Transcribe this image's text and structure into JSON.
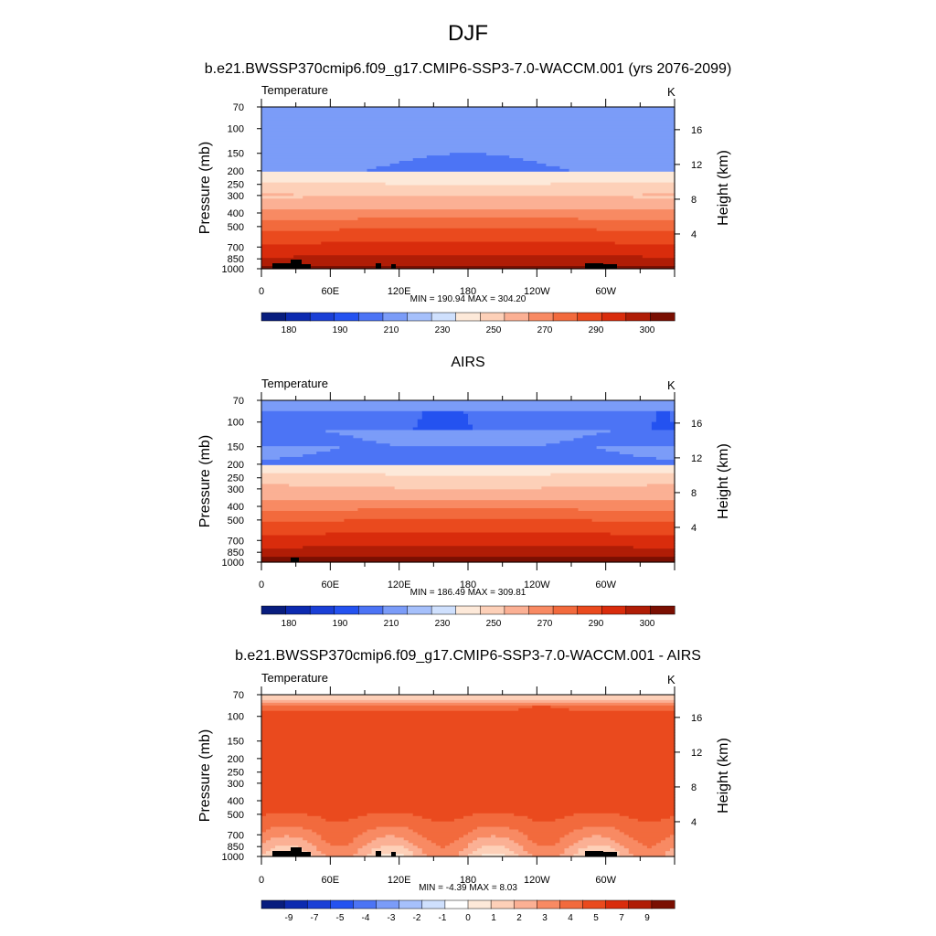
{
  "figure": {
    "title": "DJF"
  },
  "colors": {
    "temperature_fills": [
      "#081d7e",
      "#0c2ab0",
      "#1a3fd6",
      "#2452f0",
      "#4c74f5",
      "#7b9cf8",
      "#a6c0fb",
      "#cfe0fd",
      "#fde9d9",
      "#fdd0b8",
      "#fbb094",
      "#f88a63",
      "#f26a3d",
      "#ea4a1e",
      "#d92c0c",
      "#b01d06",
      "#7a0f02"
    ],
    "difference_fills": [
      "#081d7e",
      "#0c2ab0",
      "#1a3fd6",
      "#2452f0",
      "#4c74f5",
      "#7b9cf8",
      "#a6c0fb",
      "#cfe0fd",
      "#ffffff",
      "#fde9d9",
      "#fdd0b8",
      "#fbb094",
      "#f88a63",
      "#f26a3d",
      "#ea4a1e",
      "#d92c0c",
      "#b01d06",
      "#7a0f02"
    ],
    "terrain": "#000000"
  },
  "chart_data": [
    {
      "type": "contour",
      "panel_title": "b.e21.BWSSP370cmip6.f09_g17.CMIP6-SSP3-7.0-WACCM.001 (yrs 2076-2099)",
      "left_label": "Temperature",
      "units_label": "K",
      "ylabel": "Pressure (mb)",
      "ylabel_right": "Height (km)",
      "pressure_ticks": [
        "70",
        "100",
        "150",
        "200",
        "250",
        "300",
        "400",
        "500",
        "700",
        "850",
        "1000"
      ],
      "height_ticks": [
        "16",
        "12",
        "8",
        "4"
      ],
      "lon_ticks": [
        "0",
        "60E",
        "120E",
        "180",
        "120W",
        "60W"
      ],
      "stats": "MIN = 190.94  MAX = 304.20",
      "colorbar_labels": [
        "180",
        "190",
        "210",
        "230",
        "250",
        "270",
        "290",
        "300"
      ],
      "field": "model_temperature"
    },
    {
      "type": "contour",
      "panel_title": "AIRS",
      "left_label": "Temperature",
      "units_label": "K",
      "ylabel": "Pressure (mb)",
      "ylabel_right": "Height (km)",
      "pressure_ticks": [
        "70",
        "100",
        "150",
        "200",
        "250",
        "300",
        "400",
        "500",
        "700",
        "850",
        "1000"
      ],
      "height_ticks": [
        "16",
        "12",
        "8",
        "4"
      ],
      "lon_ticks": [
        "0",
        "60E",
        "120E",
        "180",
        "120W",
        "60W"
      ],
      "stats": "MIN = 186.49  MAX = 309.81",
      "colorbar_labels": [
        "180",
        "190",
        "210",
        "230",
        "250",
        "270",
        "290",
        "300"
      ],
      "field": "airs_temperature"
    },
    {
      "type": "contour",
      "panel_title": "b.e21.BWSSP370cmip6.f09_g17.CMIP6-SSP3-7.0-WACCM.001 - AIRS",
      "left_label": "Temperature",
      "units_label": "K",
      "ylabel": "Pressure (mb)",
      "ylabel_right": "Height (km)",
      "pressure_ticks": [
        "70",
        "100",
        "150",
        "200",
        "250",
        "300",
        "400",
        "500",
        "700",
        "850",
        "1000"
      ],
      "height_ticks": [
        "16",
        "12",
        "8",
        "4"
      ],
      "lon_ticks": [
        "0",
        "60E",
        "120E",
        "180",
        "120W",
        "60W"
      ],
      "stats": "MIN =  -4.39  MAX =   8.03",
      "colorbar_labels": [
        "-9",
        "-7",
        "-5",
        "-4",
        "-3",
        "-2",
        "-1",
        "0",
        "1",
        "2",
        "3",
        "4",
        "5",
        "7",
        "9"
      ],
      "field": "difference"
    }
  ]
}
